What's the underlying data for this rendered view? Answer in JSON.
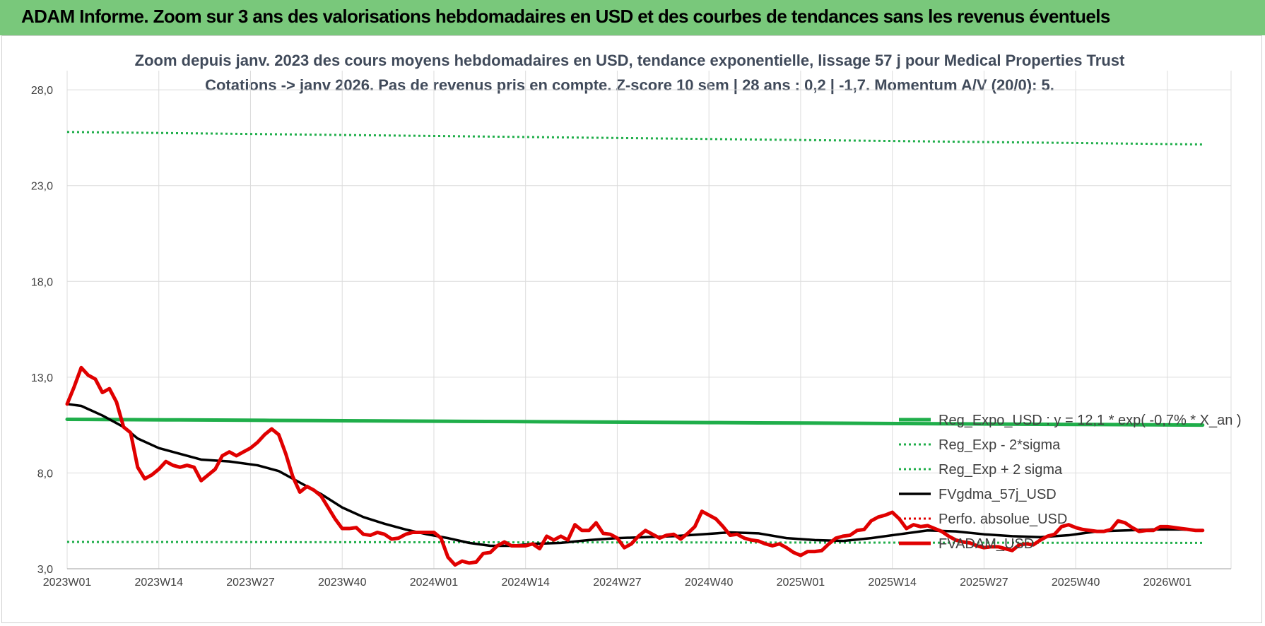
{
  "banner": {
    "title": "ADAM Informe. Zoom sur 3 ans des valorisations hebdomadaires en USD et des courbes de tendances sans les revenus éventuels"
  },
  "colors": {
    "banner": "#79c87b",
    "reg_expo": "#1fae4a",
    "sigma": "#1fae4a",
    "fvgdma": "#000000",
    "perfo": "#e00000",
    "fvadam": "#e00000"
  },
  "chart_data": {
    "type": "line",
    "title": "Zoom depuis janv. 2023 des cours moyens hebdomadaires en USD, tendance exponentielle, lissage 57 j pour Medical Properties Trust",
    "subtitle": "Cotations -> janv 2026. Pas de revenus pris en compte. Z-score 10 sem | 28 ans : 0,2 | -1,7. Momentum A/V (20/0): 5.",
    "x_ticks": [
      "2023W01",
      "2023W14",
      "2023W27",
      "2023W40",
      "2024W01",
      "2024W14",
      "2024W27",
      "2024W40",
      "2025W01",
      "2025W14",
      "2025W27",
      "2025W40",
      "2026W01"
    ],
    "y_ticks": [
      "3,0",
      "8,0",
      "13,0",
      "18,0",
      "23,0",
      "28,0"
    ],
    "ylim": [
      3,
      29
    ],
    "weeks": 162,
    "grid": true,
    "legend_position": "right",
    "series": [
      {
        "name": "Reg_Expo_USD : y = 12,1 * exp( -0,7% *  X_an )",
        "style": "thick-solid",
        "color": "#1fae4a",
        "start": 10.8,
        "end": 10.5
      },
      {
        "name": "Reg_Exp - 2*sigma",
        "style": "dotted",
        "color": "#1fae4a",
        "start": 4.4,
        "end": 4.35
      },
      {
        "name": "Reg_Exp + 2 sigma",
        "style": "dotted",
        "color": "#1fae4a",
        "start": 25.8,
        "end": 25.15
      },
      {
        "name": "FVgdma_57j_USD",
        "style": "solid",
        "color": "#000000",
        "points": [
          [
            0,
            11.6
          ],
          [
            2,
            11.5
          ],
          [
            5,
            11.0
          ],
          [
            8,
            10.4
          ],
          [
            10,
            9.8
          ],
          [
            13,
            9.3
          ],
          [
            16,
            9.0
          ],
          [
            19,
            8.7
          ],
          [
            23,
            8.6
          ],
          [
            27,
            8.4
          ],
          [
            30,
            8.1
          ],
          [
            33,
            7.5
          ],
          [
            36,
            6.9
          ],
          [
            39,
            6.2
          ],
          [
            42,
            5.7
          ],
          [
            45,
            5.35
          ],
          [
            48,
            5.05
          ],
          [
            51,
            4.8
          ],
          [
            54,
            4.6
          ],
          [
            57,
            4.35
          ],
          [
            60,
            4.2
          ],
          [
            63,
            4.2
          ],
          [
            66,
            4.3
          ],
          [
            70,
            4.35
          ],
          [
            74,
            4.5
          ],
          [
            78,
            4.6
          ],
          [
            82,
            4.65
          ],
          [
            86,
            4.7
          ],
          [
            90,
            4.8
          ],
          [
            94,
            4.9
          ],
          [
            98,
            4.85
          ],
          [
            102,
            4.6
          ],
          [
            106,
            4.5
          ],
          [
            110,
            4.45
          ],
          [
            114,
            4.6
          ],
          [
            118,
            4.8
          ],
          [
            122,
            5.0
          ],
          [
            126,
            4.95
          ],
          [
            130,
            4.8
          ],
          [
            134,
            4.7
          ],
          [
            138,
            4.65
          ],
          [
            142,
            4.75
          ],
          [
            146,
            4.95
          ],
          [
            150,
            5.0
          ],
          [
            154,
            5.05
          ],
          [
            158,
            5.05
          ],
          [
            161,
            5.0
          ]
        ]
      },
      {
        "name": "Perfo. absolue_USD",
        "style": "dotted",
        "color": "#e00000"
      },
      {
        "name": "FVADAM_USD",
        "style": "thick-solid",
        "color": "#e00000",
        "points": [
          [
            0,
            11.6
          ],
          [
            1,
            12.5
          ],
          [
            2,
            13.5
          ],
          [
            3,
            13.1
          ],
          [
            4,
            12.9
          ],
          [
            5,
            12.2
          ],
          [
            6,
            12.4
          ],
          [
            7,
            11.7
          ],
          [
            8,
            10.4
          ],
          [
            9,
            10.1
          ],
          [
            10,
            8.3
          ],
          [
            11,
            7.7
          ],
          [
            12,
            7.9
          ],
          [
            13,
            8.2
          ],
          [
            14,
            8.6
          ],
          [
            15,
            8.4
          ],
          [
            16,
            8.3
          ],
          [
            17,
            8.4
          ],
          [
            18,
            8.3
          ],
          [
            19,
            7.6
          ],
          [
            20,
            7.9
          ],
          [
            21,
            8.2
          ],
          [
            22,
            8.9
          ],
          [
            23,
            9.1
          ],
          [
            24,
            8.9
          ],
          [
            25,
            9.1
          ],
          [
            26,
            9.3
          ],
          [
            27,
            9.6
          ],
          [
            28,
            10.0
          ],
          [
            29,
            10.3
          ],
          [
            30,
            10.0
          ],
          [
            31,
            9.0
          ],
          [
            32,
            7.8
          ],
          [
            33,
            7.0
          ],
          [
            34,
            7.3
          ],
          [
            35,
            7.1
          ],
          [
            36,
            6.8
          ],
          [
            37,
            6.2
          ],
          [
            38,
            5.6
          ],
          [
            39,
            5.1
          ],
          [
            40,
            5.1
          ],
          [
            41,
            5.15
          ],
          [
            42,
            4.8
          ],
          [
            43,
            4.75
          ],
          [
            44,
            4.9
          ],
          [
            45,
            4.8
          ],
          [
            46,
            4.55
          ],
          [
            47,
            4.6
          ],
          [
            48,
            4.8
          ],
          [
            49,
            4.9
          ],
          [
            50,
            4.9
          ],
          [
            51,
            4.9
          ],
          [
            52,
            4.9
          ],
          [
            53,
            4.6
          ],
          [
            54,
            3.6
          ],
          [
            55,
            3.2
          ],
          [
            56,
            3.4
          ],
          [
            57,
            3.3
          ],
          [
            58,
            3.35
          ],
          [
            59,
            3.8
          ],
          [
            60,
            3.85
          ],
          [
            61,
            4.2
          ],
          [
            62,
            4.4
          ],
          [
            63,
            4.2
          ],
          [
            64,
            4.2
          ],
          [
            65,
            4.2
          ],
          [
            66,
            4.3
          ],
          [
            67,
            4.05
          ],
          [
            68,
            4.7
          ],
          [
            69,
            4.5
          ],
          [
            70,
            4.7
          ],
          [
            71,
            4.5
          ],
          [
            72,
            5.3
          ],
          [
            73,
            5.0
          ],
          [
            74,
            5.0
          ],
          [
            75,
            5.4
          ],
          [
            76,
            4.85
          ],
          [
            77,
            4.8
          ],
          [
            78,
            4.6
          ],
          [
            79,
            4.1
          ],
          [
            80,
            4.3
          ],
          [
            81,
            4.7
          ],
          [
            82,
            5.0
          ],
          [
            83,
            4.8
          ],
          [
            84,
            4.6
          ],
          [
            85,
            4.75
          ],
          [
            86,
            4.8
          ],
          [
            87,
            4.55
          ],
          [
            88,
            4.85
          ],
          [
            89,
            5.2
          ],
          [
            90,
            6.0
          ],
          [
            91,
            5.8
          ],
          [
            92,
            5.6
          ],
          [
            93,
            5.2
          ],
          [
            94,
            4.75
          ],
          [
            95,
            4.8
          ],
          [
            96,
            4.6
          ],
          [
            97,
            4.5
          ],
          [
            98,
            4.45
          ],
          [
            99,
            4.3
          ],
          [
            100,
            4.2
          ],
          [
            101,
            4.3
          ],
          [
            102,
            4.1
          ],
          [
            103,
            3.85
          ],
          [
            104,
            3.7
          ],
          [
            105,
            3.9
          ],
          [
            106,
            3.9
          ],
          [
            107,
            3.95
          ],
          [
            108,
            4.3
          ],
          [
            109,
            4.6
          ],
          [
            110,
            4.7
          ],
          [
            111,
            4.75
          ],
          [
            112,
            5.0
          ],
          [
            113,
            5.05
          ],
          [
            114,
            5.5
          ],
          [
            115,
            5.7
          ],
          [
            116,
            5.8
          ],
          [
            117,
            5.95
          ],
          [
            118,
            5.6
          ],
          [
            119,
            5.1
          ],
          [
            120,
            5.3
          ],
          [
            121,
            5.2
          ],
          [
            122,
            5.25
          ],
          [
            123,
            5.1
          ],
          [
            124,
            4.95
          ],
          [
            125,
            4.7
          ],
          [
            126,
            4.5
          ],
          [
            127,
            4.4
          ],
          [
            128,
            4.35
          ],
          [
            129,
            4.2
          ],
          [
            130,
            4.1
          ],
          [
            131,
            4.15
          ],
          [
            132,
            4.15
          ],
          [
            133,
            4.05
          ],
          [
            134,
            3.95
          ],
          [
            135,
            4.25
          ],
          [
            136,
            4.3
          ],
          [
            137,
            4.25
          ],
          [
            138,
            4.5
          ],
          [
            139,
            4.7
          ],
          [
            140,
            4.8
          ],
          [
            141,
            5.2
          ],
          [
            142,
            5.3
          ],
          [
            143,
            5.15
          ],
          [
            144,
            5.05
          ],
          [
            145,
            5.0
          ],
          [
            146,
            4.95
          ],
          [
            147,
            4.95
          ],
          [
            148,
            5.05
          ],
          [
            149,
            5.5
          ],
          [
            150,
            5.4
          ],
          [
            151,
            5.15
          ],
          [
            152,
            4.95
          ],
          [
            153,
            5.0
          ],
          [
            154,
            5.0
          ],
          [
            155,
            5.2
          ],
          [
            156,
            5.2
          ],
          [
            157,
            5.15
          ],
          [
            158,
            5.1
          ],
          [
            159,
            5.05
          ],
          [
            160,
            5.0
          ],
          [
            161,
            5.0
          ]
        ]
      }
    ]
  }
}
